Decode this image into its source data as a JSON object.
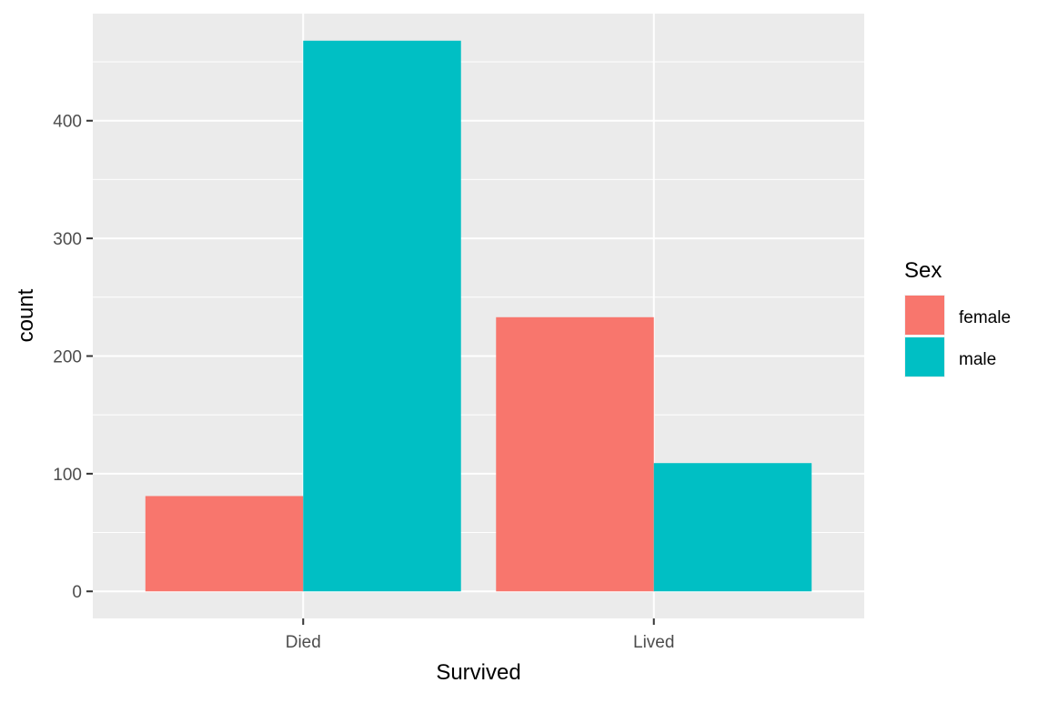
{
  "chart_data": {
    "type": "bar",
    "categories": [
      "Died",
      "Lived"
    ],
    "series": [
      {
        "name": "female",
        "values": [
          81,
          233
        ]
      },
      {
        "name": "male",
        "values": [
          468,
          109
        ]
      }
    ],
    "xlabel": "Survived",
    "ylabel": "count",
    "ylim": [
      -23,
      491
    ],
    "yticks": [
      0,
      100,
      200,
      300,
      400
    ],
    "ytick_labels": [
      "0",
      "100",
      "200",
      "300",
      "400"
    ],
    "legend": {
      "title": "Sex",
      "placement": "right",
      "entries": [
        "female",
        "male"
      ]
    },
    "colors": {
      "female": "#F8766D",
      "male": "#00BFC4",
      "panel_background": "#EBEBEB",
      "grid": "#FFFFFF"
    },
    "grid": true
  }
}
